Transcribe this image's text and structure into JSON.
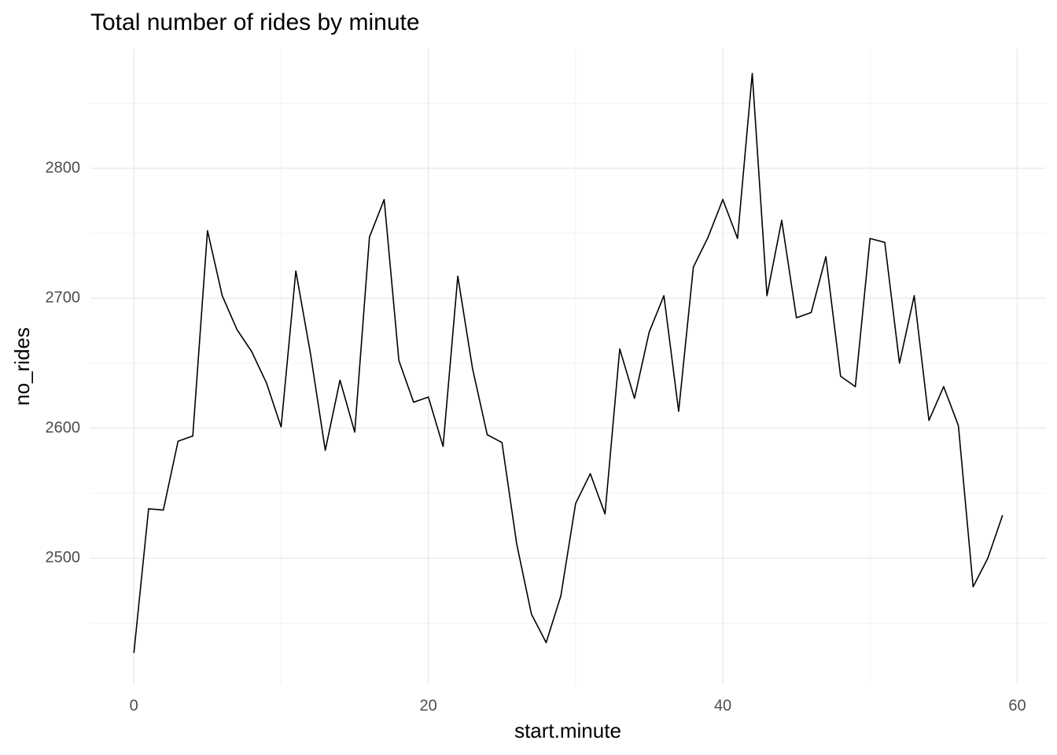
{
  "chart_data": {
    "type": "line",
    "title": "Total number of rides by minute",
    "xlabel": "start.minute",
    "ylabel": "no_rides",
    "x": [
      0,
      1,
      2,
      3,
      4,
      5,
      6,
      7,
      8,
      9,
      10,
      11,
      12,
      13,
      14,
      15,
      16,
      17,
      18,
      19,
      20,
      21,
      22,
      23,
      24,
      25,
      26,
      27,
      28,
      29,
      30,
      31,
      32,
      33,
      34,
      35,
      36,
      37,
      38,
      39,
      40,
      41,
      42,
      43,
      44,
      45,
      46,
      47,
      48,
      49,
      50,
      51,
      52,
      53,
      54,
      55,
      56,
      57,
      58,
      59
    ],
    "series": [
      {
        "name": "no_rides",
        "color": "#000000",
        "values": [
          2427,
          2538,
          2537,
          2590,
          2594,
          2752,
          2702,
          2676,
          2659,
          2635,
          2601,
          2721,
          2657,
          2583,
          2637,
          2597,
          2747,
          2776,
          2652,
          2620,
          2624,
          2586,
          2717,
          2646,
          2595,
          2589,
          2511,
          2457,
          2435,
          2471,
          2542,
          2565,
          2534,
          2661,
          2623,
          2674,
          2702,
          2613,
          2724,
          2747,
          2776,
          2746,
          2873,
          2702,
          2760,
          2685,
          2689,
          2732,
          2640,
          2632,
          2746,
          2743,
          2650,
          2702,
          2606,
          2632,
          2602,
          2478,
          2500,
          2533
        ]
      }
    ],
    "xlim": [
      -2.95,
      61.95
    ],
    "xticks": [
      0,
      20,
      40,
      60
    ],
    "ylim": [
      2403,
      2892
    ],
    "yticks": [
      2500,
      2600,
      2700,
      2800
    ],
    "grid": true
  }
}
